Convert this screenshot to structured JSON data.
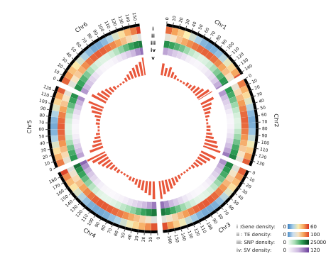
{
  "chart_data": {
    "type": "circos",
    "color": "#000000",
    "bin_size": 10,
    "chromosomes": [
      {
        "name": "Chr1",
        "length": 143,
        "ticks": [
          0,
          10,
          20,
          30,
          40,
          50,
          60,
          70,
          80,
          90,
          100,
          110,
          120,
          130,
          140
        ]
      },
      {
        "name": "Chr2",
        "length": 138,
        "ticks": [
          0,
          10,
          20,
          30,
          40,
          50,
          60,
          70,
          80,
          90,
          100,
          110,
          120,
          130
        ]
      },
      {
        "name": "Chr3",
        "length": 168,
        "ticks": [
          0,
          10,
          20,
          30,
          40,
          50,
          60,
          70,
          80,
          90,
          100,
          110,
          120,
          130,
          140,
          150,
          160
        ]
      },
      {
        "name": "Chr4",
        "length": 187,
        "ticks": [
          0,
          10,
          20,
          30,
          40,
          50,
          60,
          70,
          80,
          90,
          100,
          110,
          120,
          130,
          140,
          150,
          160,
          170,
          180
        ]
      },
      {
        "name": "Chr5",
        "length": 128,
        "ticks": [
          0,
          10,
          20,
          30,
          40,
          50,
          60,
          70,
          80,
          90,
          100,
          110,
          120
        ]
      },
      {
        "name": "Chr6",
        "length": 156,
        "ticks": [
          0,
          10,
          20,
          30,
          40,
          50,
          60,
          70,
          80,
          90,
          100,
          110,
          120,
          130,
          140,
          150
        ]
      }
    ],
    "tracks": [
      {
        "label": "i",
        "name": "i :Gene density:",
        "type": "heatmap",
        "range": [
          0,
          60
        ],
        "colors": [
          "#3b7fc0",
          "#a9d0e8",
          "#fbeeb0",
          "#f6a35a",
          "#d7301f"
        ],
        "values": {
          "Chr1": [
            52,
            45,
            38,
            30,
            22,
            15,
            10,
            8,
            9,
            12,
            18,
            26,
            35,
            44,
            55
          ],
          "Chr2": [
            50,
            42,
            34,
            25,
            17,
            11,
            8,
            9,
            13,
            20,
            28,
            37,
            46,
            54
          ],
          "Chr3": [
            54,
            47,
            40,
            33,
            25,
            18,
            12,
            9,
            8,
            8,
            10,
            14,
            20,
            28,
            37,
            46,
            56
          ],
          "Chr4": [
            55,
            48,
            42,
            35,
            28,
            22,
            16,
            12,
            9,
            8,
            8,
            9,
            12,
            17,
            24,
            32,
            40,
            48,
            57
          ],
          "Chr5": [
            50,
            42,
            33,
            24,
            16,
            10,
            8,
            10,
            16,
            25,
            35,
            45,
            54
          ],
          "Chr6": [
            53,
            46,
            39,
            31,
            23,
            16,
            11,
            8,
            8,
            11,
            16,
            24,
            33,
            42,
            50,
            58
          ]
        }
      },
      {
        "label": "ii",
        "name": "ii : TE density:",
        "type": "heatmap",
        "range": [
          0,
          100
        ],
        "colors": [
          "#4a8cc6",
          "#c9def0",
          "#f7e3c2",
          "#f4a259",
          "#e0452b"
        ],
        "values": {
          "Chr1": [
            40,
            50,
            62,
            72,
            80,
            86,
            90,
            92,
            91,
            88,
            82,
            74,
            64,
            52,
            42
          ],
          "Chr2": [
            42,
            54,
            66,
            76,
            84,
            90,
            92,
            90,
            85,
            78,
            70,
            60,
            50,
            40
          ],
          "Chr3": [
            38,
            48,
            58,
            68,
            78,
            85,
            90,
            93,
            94,
            93,
            90,
            84,
            76,
            66,
            56,
            46,
            38
          ],
          "Chr4": [
            36,
            46,
            56,
            64,
            72,
            80,
            86,
            90,
            93,
            94,
            94,
            92,
            88,
            82,
            74,
            64,
            54,
            44,
            36
          ],
          "Chr5": [
            42,
            54,
            66,
            78,
            86,
            91,
            93,
            90,
            84,
            74,
            62,
            50,
            40
          ],
          "Chr6": [
            38,
            50,
            60,
            70,
            80,
            87,
            91,
            93,
            92,
            88,
            82,
            74,
            64,
            54,
            44,
            36
          ]
        }
      },
      {
        "label": "iii",
        "name": "iii: SNP density:",
        "type": "heatmap",
        "range": [
          0,
          25000
        ],
        "colors": [
          "#ffffff",
          "#a8ddb5",
          "#2e9e55",
          "#00441b"
        ],
        "values": {
          "Chr1": [
            18000,
            16000,
            14000,
            12000,
            9000,
            6000,
            4000,
            3000,
            3500,
            5000,
            8000,
            11000,
            14000,
            17000,
            19000
          ],
          "Chr2": [
            17000,
            15000,
            12000,
            9000,
            6000,
            4000,
            3000,
            3500,
            6000,
            9000,
            12000,
            15000,
            17000,
            19000
          ],
          "Chr3": [
            19000,
            17000,
            15000,
            12000,
            9000,
            6000,
            4000,
            3000,
            2500,
            2800,
            4000,
            6000,
            9000,
            12000,
            15000,
            18000,
            20000
          ],
          "Chr4": [
            20000,
            18000,
            16000,
            13000,
            10000,
            8000,
            6000,
            4000,
            3000,
            2500,
            2500,
            3000,
            4500,
            7000,
            10000,
            13000,
            16000,
            18000,
            21000
          ],
          "Chr5": [
            17000,
            15000,
            12000,
            8000,
            5000,
            3500,
            3000,
            4000,
            6000,
            9000,
            13000,
            16000,
            18000
          ],
          "Chr6": [
            18000,
            16000,
            14000,
            11000,
            8000,
            5000,
            3500,
            3000,
            3200,
            4500,
            7000,
            10000,
            13000,
            16000,
            18500,
            20000
          ]
        }
      },
      {
        "label": "iv",
        "name": "iv: SV density:",
        "type": "heatmap",
        "range": [
          0,
          120
        ],
        "colors": [
          "#ffffff",
          "#cdb9e0",
          "#6a3d9a"
        ],
        "values": {
          "Chr1": [
            70,
            60,
            45,
            35,
            25,
            15,
            10,
            8,
            10,
            15,
            22,
            30,
            45,
            65,
            85
          ],
          "Chr2": [
            75,
            55,
            40,
            30,
            18,
            10,
            8,
            10,
            16,
            25,
            38,
            55,
            70,
            90
          ],
          "Chr3": [
            80,
            65,
            50,
            38,
            26,
            16,
            10,
            7,
            6,
            8,
            12,
            20,
            32,
            45,
            60,
            78,
            95
          ],
          "Chr4": [
            90,
            72,
            58,
            45,
            34,
            24,
            16,
            11,
            8,
            6,
            7,
            9,
            14,
            22,
            34,
            48,
            64,
            80,
            100
          ],
          "Chr5": [
            70,
            55,
            40,
            26,
            15,
            9,
            7,
            10,
            18,
            30,
            45,
            62,
            80
          ],
          "Chr6": [
            75,
            60,
            48,
            35,
            24,
            14,
            9,
            7,
            8,
            12,
            20,
            30,
            44,
            60,
            78,
            95
          ]
        }
      },
      {
        "label": "v",
        "type": "histogram",
        "range": [
          0,
          10
        ],
        "color": "#e8563a",
        "values": {
          "Chr1": [
            6,
            4,
            5,
            3,
            2,
            1,
            1,
            1,
            2,
            2,
            3,
            4,
            5,
            7,
            8
          ],
          "Chr2": [
            7,
            5,
            4,
            3,
            2,
            1,
            1,
            2,
            2,
            3,
            4,
            6,
            7,
            9
          ],
          "Chr3": [
            8,
            6,
            5,
            4,
            3,
            2,
            1,
            1,
            1,
            1,
            2,
            3,
            4,
            5,
            6,
            7,
            9
          ],
          "Chr4": [
            9,
            7,
            6,
            5,
            4,
            3,
            2,
            2,
            1,
            1,
            1,
            2,
            2,
            3,
            4,
            5,
            6,
            8,
            10
          ],
          "Chr5": [
            7,
            5,
            4,
            3,
            2,
            1,
            1,
            2,
            2,
            3,
            5,
            6,
            8
          ],
          "Chr6": [
            8,
            6,
            5,
            4,
            3,
            2,
            1,
            1,
            1,
            2,
            3,
            4,
            5,
            6,
            7,
            9
          ]
        }
      }
    ]
  }
}
